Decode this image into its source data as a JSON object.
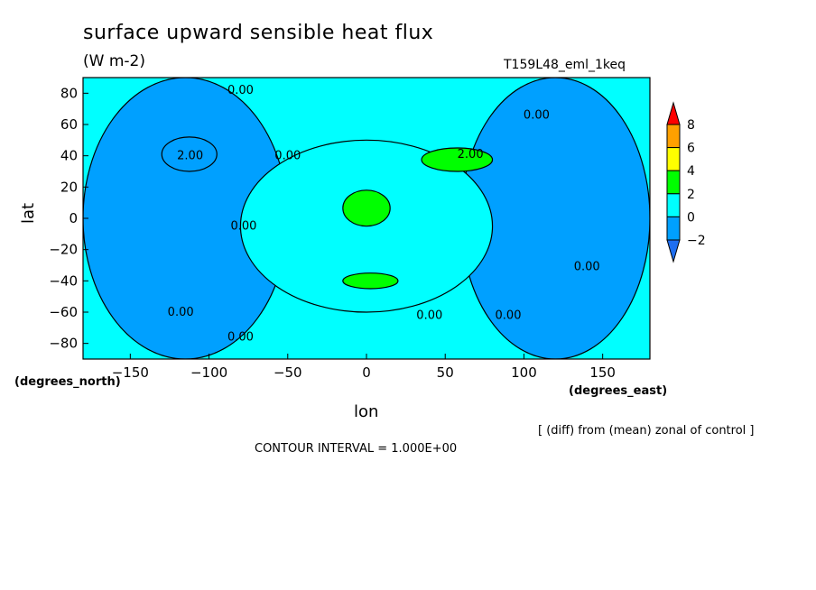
{
  "chart_data": {
    "type": "heatmap",
    "title": "surface upward sensible heat flux",
    "subtitle": "(W m-2)",
    "run_label": "T159L48_eml_1keq",
    "xlabel": "lon",
    "ylabel": "lat",
    "x_units": "(degrees_east)",
    "y_units": "(degrees_north)",
    "xlim": [
      -180,
      180
    ],
    "ylim": [
      -90,
      90
    ],
    "x_ticks": [
      -150,
      -100,
      -50,
      0,
      50,
      100,
      150
    ],
    "y_ticks": [
      80,
      60,
      40,
      20,
      0,
      -20,
      -40,
      -60,
      -80
    ],
    "colorbar": {
      "labels": [
        8,
        6,
        4,
        2,
        0,
        -2
      ],
      "levels": [
        -4,
        -2,
        0,
        2,
        4,
        6,
        8,
        10
      ],
      "colors": [
        "#1e6ef0",
        "#00a0ff",
        "#00ffff",
        "#00ff00",
        "#ffff00",
        "#ffa000",
        "#ff0000"
      ]
    },
    "contour_labels": [
      {
        "text": "0.00",
        "lon": -80,
        "lat": 82
      },
      {
        "text": "0.00",
        "lon": 108,
        "lat": 66
      },
      {
        "text": "2.00",
        "lon": -112,
        "lat": 40
      },
      {
        "text": "0.00",
        "lon": -50,
        "lat": 40
      },
      {
        "text": "2.00",
        "lon": 66,
        "lat": 41
      },
      {
        "text": "0.00",
        "lon": -78,
        "lat": -5
      },
      {
        "text": "0.00",
        "lon": 140,
        "lat": -31
      },
      {
        "text": "0.00",
        "lon": -118,
        "lat": -60
      },
      {
        "text": "0.00",
        "lon": 40,
        "lat": -62
      },
      {
        "text": "0.00",
        "lon": 90,
        "lat": -62
      },
      {
        "text": "0.00",
        "lon": -80,
        "lat": -76
      }
    ],
    "regions": [
      {
        "value": 1,
        "lon": [
          -180,
          180
        ],
        "lat": [
          -90,
          90
        ]
      },
      {
        "value": -1,
        "lon": [
          -180,
          -50
        ],
        "lat": [
          -90,
          90
        ]
      },
      {
        "value": -1,
        "lon": [
          60,
          180
        ],
        "lat": [
          -90,
          90
        ]
      },
      {
        "value": 1,
        "lon": [
          -80,
          80
        ],
        "lat": [
          -60,
          50
        ]
      },
      {
        "value": -2,
        "lon": [
          -130,
          -95
        ],
        "lat": [
          30,
          52
        ]
      },
      {
        "value": 3,
        "lon": [
          35,
          80
        ],
        "lat": [
          30,
          45
        ]
      },
      {
        "value": 3,
        "lon": [
          -15,
          15
        ],
        "lat": [
          -5,
          18
        ]
      },
      {
        "value": 3,
        "lon": [
          -15,
          20
        ],
        "lat": [
          -45,
          -35
        ]
      }
    ]
  },
  "annotations": {
    "diff_note": "[ (diff) from (mean) zonal of control ]",
    "contour_interval": "CONTOUR INTERVAL = 1.000E+00"
  }
}
